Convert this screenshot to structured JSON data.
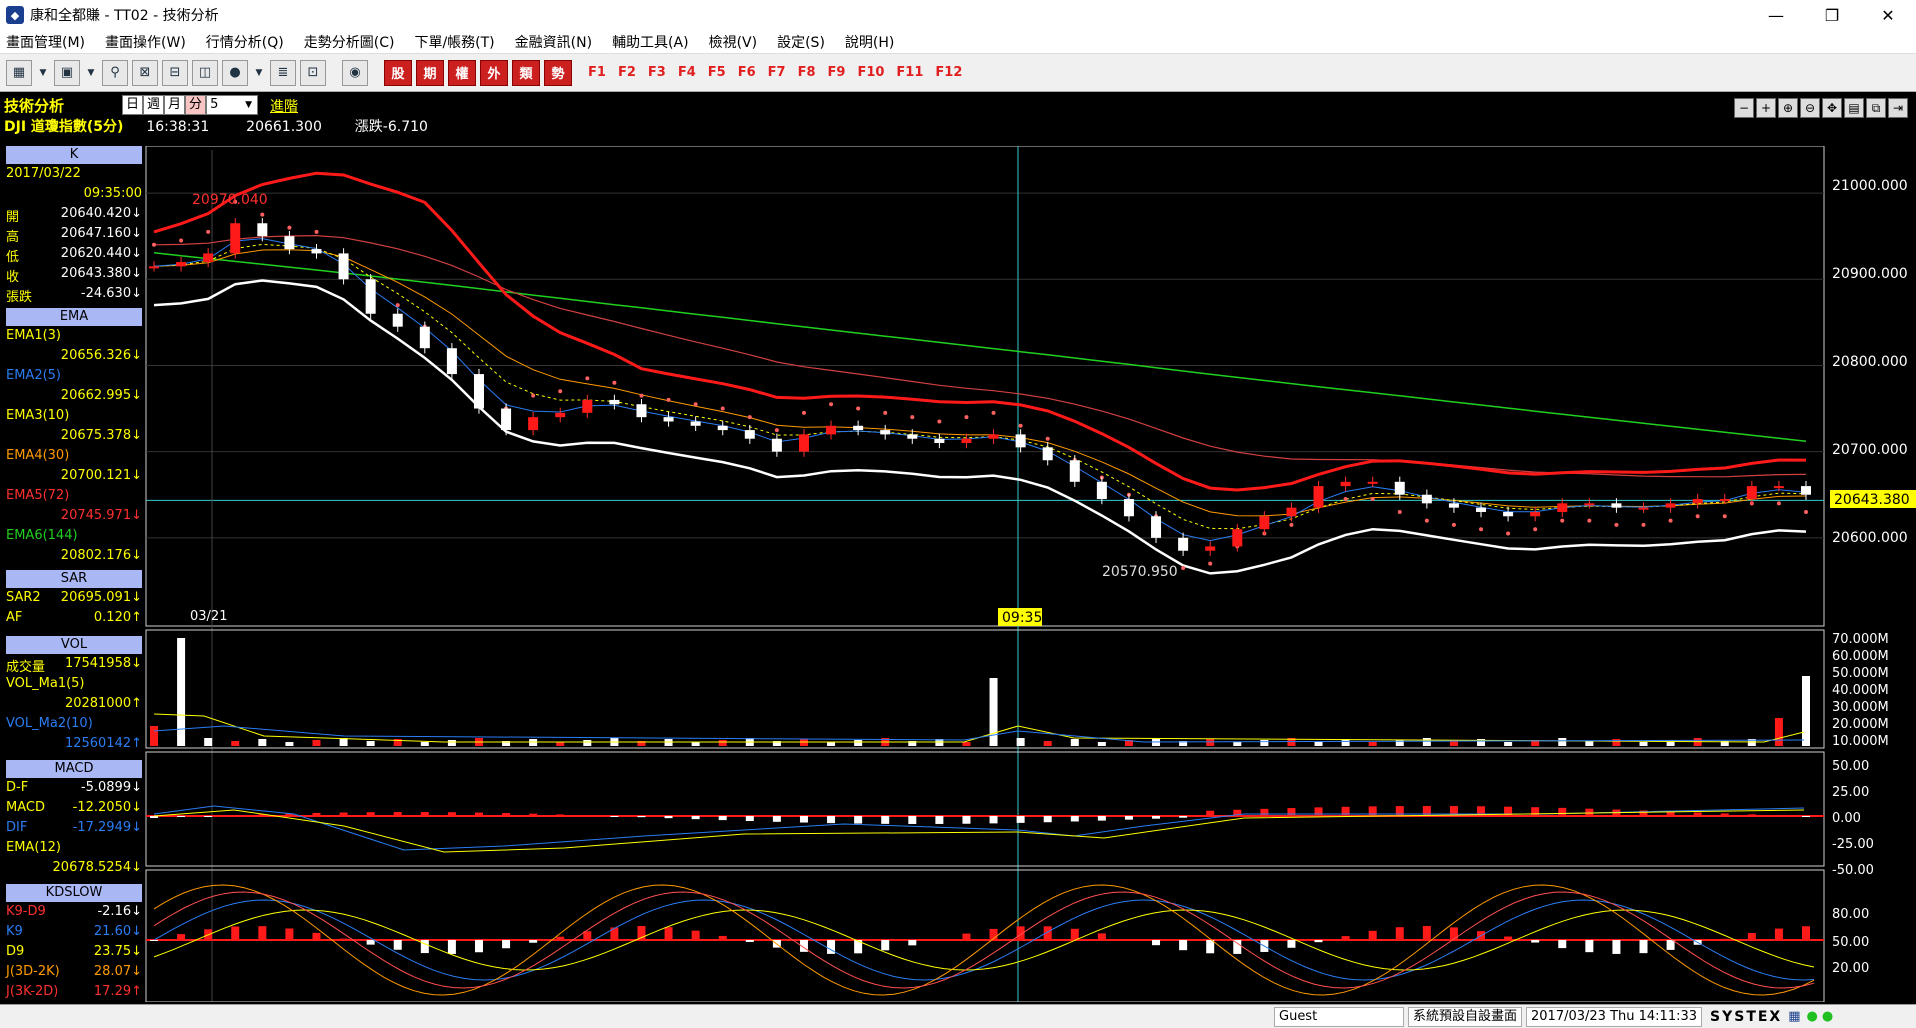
{
  "window": {
    "title": "康和全都賺 - TT02 - 技術分析",
    "minimize": "—",
    "maximize": "❐",
    "close": "✕"
  },
  "menu": [
    "畫面管理(M)",
    "畫面操作(W)",
    "行情分析(Q)",
    "走勢分析圖(C)",
    "下單/帳務(T)",
    "金融資訊(N)",
    "輔助工具(A)",
    "檢視(V)",
    "設定(S)",
    "說明(H)"
  ],
  "toolbar": {
    "red_buttons": [
      "股",
      "期",
      "權",
      "外",
      "類",
      "勢"
    ],
    "fkeys": [
      "F1",
      "F2",
      "F3",
      "F4",
      "F5",
      "F6",
      "F7",
      "F8",
      "F9",
      "F10",
      "F11",
      "F12"
    ]
  },
  "header": {
    "panel_title": "技術分析",
    "periods": [
      "日",
      "週",
      "月",
      "分"
    ],
    "interval": "5",
    "advanced": "進階",
    "symbol": "DJI 道瓊指數(5分)",
    "time": "16:38:31",
    "price": "20661.300",
    "change": "漲跌-6.710"
  },
  "sidebar": {
    "k": {
      "title": "K",
      "date": "2017/03/22",
      "time": "09:35:00",
      "rows": [
        {
          "label": "開",
          "value": "20640.420↓"
        },
        {
          "label": "高",
          "value": "20647.160↓"
        },
        {
          "label": "低",
          "value": "20620.440↓"
        },
        {
          "label": "收",
          "value": "20643.380↓"
        },
        {
          "label": "張跌",
          "value": "-24.630↓"
        }
      ]
    },
    "ema": {
      "title": "EMA",
      "rows": [
        {
          "label": "EMA1(3)",
          "value": "20656.326↓"
        },
        {
          "label": "EMA2(5)",
          "value": "20662.995↓"
        },
        {
          "label": "EMA3(10)",
          "value": "20675.378↓"
        },
        {
          "label": "EMA4(30)",
          "value": "20700.121↓"
        },
        {
          "label": "EMA5(72)",
          "value": "20745.971↓"
        },
        {
          "label": "EMA6(144)",
          "value": "20802.176↓"
        }
      ]
    },
    "sar": {
      "title": "SAR",
      "rows": [
        {
          "label": "SAR2",
          "value": "20695.091↓"
        },
        {
          "label": "AF",
          "value": "0.120↑"
        }
      ]
    },
    "vol": {
      "title": "VOL",
      "rows": [
        {
          "label": "成交量",
          "value": "17541958↓"
        },
        {
          "label": "VOL_Ma1(5)",
          "value": ""
        },
        {
          "label": "",
          "value": "20281000↑"
        },
        {
          "label": "VOL_Ma2(10)",
          "value": ""
        },
        {
          "label": "",
          "value": "12560142↑"
        }
      ]
    },
    "macd": {
      "title": "MACD",
      "rows": [
        {
          "label": "D-F",
          "value": "-5.0899↓"
        },
        {
          "label": "MACD",
          "value": "-12.2050↓"
        },
        {
          "label": "DIF",
          "value": "-17.2949↓"
        },
        {
          "label": "EMA(12)",
          "value": ""
        },
        {
          "label": "",
          "value": "20678.5254↓"
        }
      ]
    },
    "kd": {
      "title": "KDSLOW",
      "rows": [
        {
          "label": "K9-D9",
          "value": "-2.16↓"
        },
        {
          "label": "K9",
          "value": "21.60↓"
        },
        {
          "label": "D9",
          "value": "23.75↓"
        },
        {
          "label": "J(3D-2K)",
          "value": "28.07↓"
        },
        {
          "label": "J(3K-2D)",
          "value": "17.29↑"
        }
      ]
    }
  },
  "chart": {
    "price_axis": [
      "21000.000",
      "20900.000",
      "20800.000",
      "20700.000",
      "20600.000"
    ],
    "current_price_tag": "20643.380",
    "high_label": "20970.040",
    "low_label": "20570.950",
    "date_label": "03/21",
    "cursor_time": "09:35",
    "vol_axis": [
      "70.000M",
      "60.000M",
      "50.000M",
      "40.000M",
      "30.000M",
      "20.000M",
      "10.000M"
    ],
    "macd_axis": [
      "50.00",
      "25.00",
      "0.00",
      "-25.00",
      "-50.00"
    ],
    "kd_axis": [
      "80.00",
      "50.00",
      "20.00"
    ]
  },
  "status": {
    "user": "Guest",
    "layout": "系統預設自設畫面",
    "datetime": "2017/03/23 Thu 14:11:33",
    "brand": "SYSTEX"
  },
  "chart_data": {
    "type": "line",
    "symbol": "DJI 道瓊指數(5分)",
    "price_ylim": [
      20500,
      21050
    ],
    "candles_close_approx": [
      20915,
      20920,
      20930,
      20965,
      20950,
      20935,
      20930,
      20900,
      20860,
      20845,
      20820,
      20790,
      20750,
      20725,
      20740,
      20745,
      20760,
      20755,
      20740,
      20735,
      20730,
      20725,
      20715,
      20700,
      20720,
      20730,
      20725,
      20720,
      20715,
      20710,
      20715,
      20720,
      20705,
      20690,
      20665,
      20645,
      20625,
      20600,
      20585,
      20590,
      20610,
      20625,
      20635,
      20660,
      20665,
      20665,
      20650,
      20640,
      20635,
      20630,
      20625,
      20630,
      20640,
      20640,
      20635,
      20635,
      20640,
      20645,
      20645,
      20660,
      20660,
      20650
    ],
    "ema_series": [
      {
        "name": "EMA1(3)",
        "color": "#ff3030",
        "last": 20656.326
      },
      {
        "name": "EMA2(5)",
        "color": "#2a7df5",
        "last": 20662.995
      },
      {
        "name": "EMA3(10)",
        "color": "#ffff00",
        "last": 20675.378
      },
      {
        "name": "EMA4(30)",
        "color": "#ff9a00",
        "last": 20700.121
      },
      {
        "name": "EMA5(72)",
        "color": "#ff3030",
        "last": 20745.971
      },
      {
        "name": "EMA6(144)",
        "color": "#20d020",
        "last": 20802.176
      }
    ],
    "macd_ylim": [
      -50,
      50
    ],
    "kd_ylim": [
      0,
      100
    ]
  }
}
